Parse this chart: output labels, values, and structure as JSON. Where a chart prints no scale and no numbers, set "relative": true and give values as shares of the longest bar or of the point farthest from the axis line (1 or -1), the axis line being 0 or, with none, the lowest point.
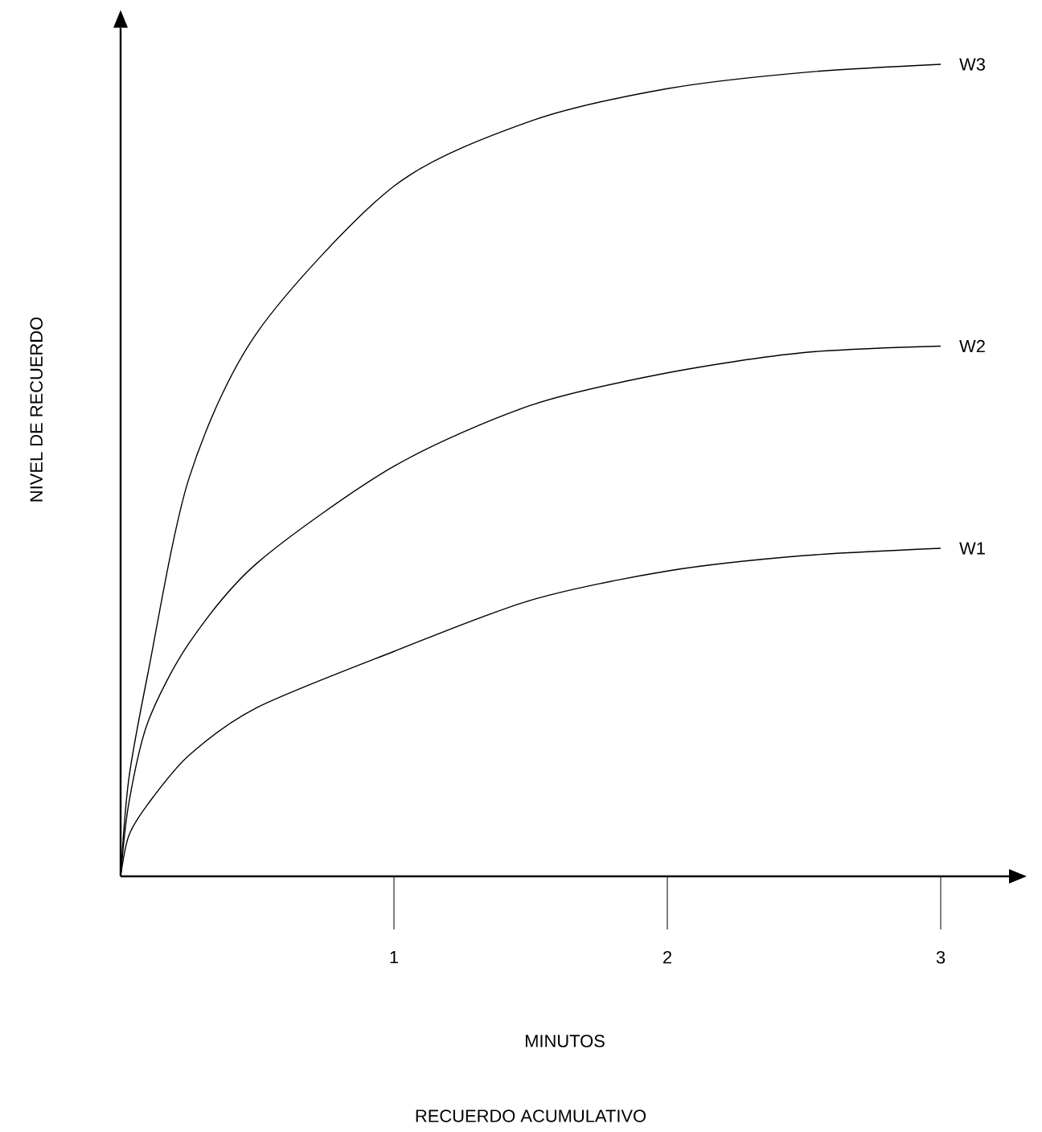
{
  "chart_data": {
    "type": "line",
    "relative": true,
    "xlabel": "MINUTOS",
    "ylabel": "NIVEL DE RECUERDO",
    "annotations": [
      "RECUERDO ACUMULATIVO"
    ],
    "x": [
      0,
      0.03,
      0.1,
      0.25,
      0.5,
      1,
      1.5,
      2,
      2.5,
      3
    ],
    "xlim": [
      0,
      3.25
    ],
    "xticks": [
      1,
      2,
      3
    ],
    "series": [
      {
        "name": "W1",
        "color": "#000000",
        "values": [
          0,
          0.05,
          0.089,
          0.149,
          0.208,
          0.277,
          0.34,
          0.376,
          0.395,
          0.404
        ]
      },
      {
        "name": "W2",
        "color": "#000000",
        "values": [
          0,
          0.09,
          0.19,
          0.287,
          0.386,
          0.505,
          0.58,
          0.62,
          0.645,
          0.653
        ]
      },
      {
        "name": "W3",
        "color": "#000000",
        "values": [
          0,
          0.12,
          0.25,
          0.49,
          0.67,
          0.85,
          0.93,
          0.97,
          0.99,
          1
        ]
      }
    ]
  }
}
